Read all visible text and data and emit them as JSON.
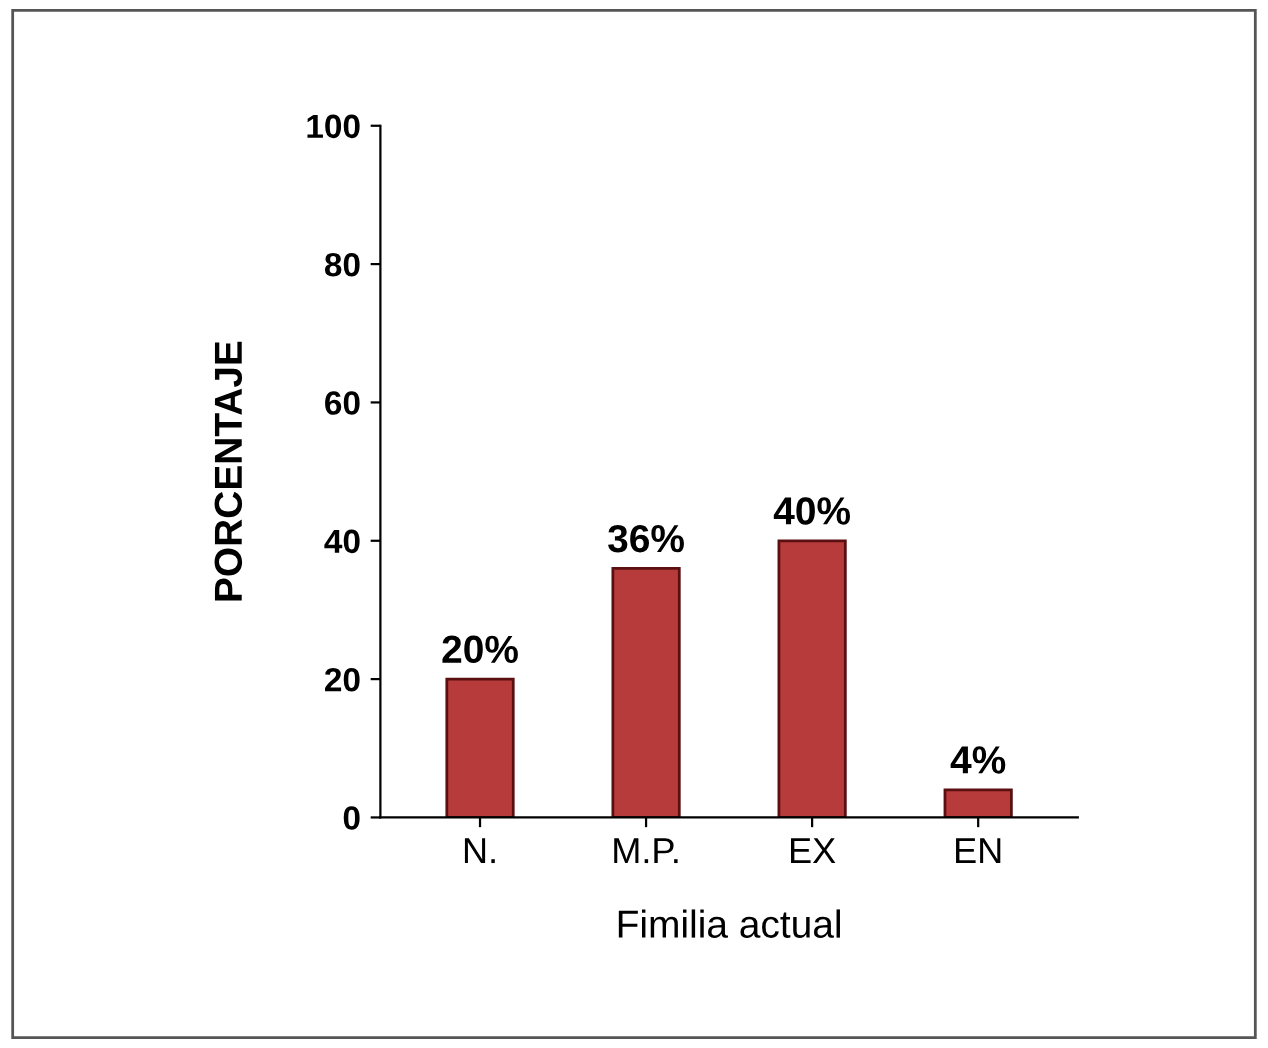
{
  "chart_data": {
    "type": "bar",
    "xlabel": "Fimilia actual",
    "ylabel": "PORCENTAJE",
    "categories": [
      "N.",
      "M.P.",
      "EX",
      "EN"
    ],
    "values": [
      20,
      36,
      40,
      4
    ],
    "value_labels": [
      "20%",
      "36%",
      "40%",
      "4%"
    ],
    "color": "#b83b3b",
    "ylim": [
      0,
      100
    ],
    "yticks": [
      0,
      20,
      40,
      60,
      80,
      100
    ],
    "grid": false,
    "legend": false
  }
}
